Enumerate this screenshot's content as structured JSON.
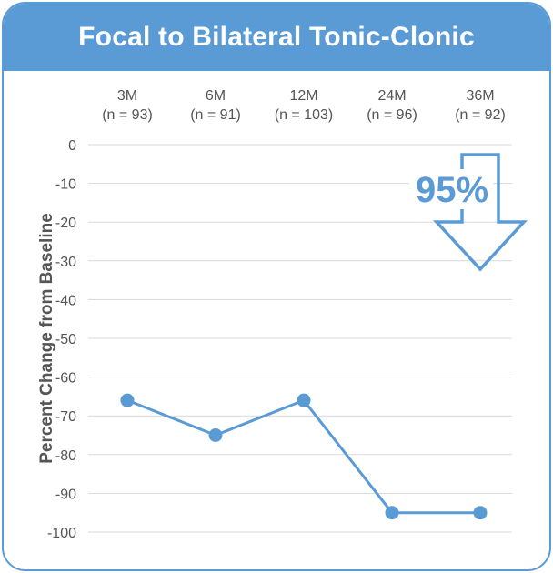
{
  "header": {
    "title": "Focal to Bilateral Tonic-Clonic"
  },
  "colors": {
    "accent": "#5b9bd5",
    "grid": "#d9d9d9",
    "text": "#555555"
  },
  "callout": {
    "text": "95%",
    "icon": "down-arrow-icon"
  },
  "chart_data": {
    "type": "line",
    "title": "Focal to Bilateral Tonic-Clonic",
    "xlabel": "",
    "ylabel": "Percent Change from Baseline",
    "categories": [
      "3M",
      "6M",
      "12M",
      "24M",
      "36M"
    ],
    "category_counts": [
      "(n = 93)",
      "(n = 91)",
      "(n = 103)",
      "(n = 96)",
      "(n = 92)"
    ],
    "series": [
      {
        "values": [
          -66,
          -75,
          -66,
          -95,
          -95
        ]
      }
    ],
    "ylim": [
      -100,
      0
    ],
    "yticks": [
      0,
      -10,
      -20,
      -30,
      -40,
      -50,
      -60,
      -70,
      -80,
      -90,
      -100
    ],
    "x_axis_position": "top",
    "grid": true,
    "legend": "none"
  }
}
